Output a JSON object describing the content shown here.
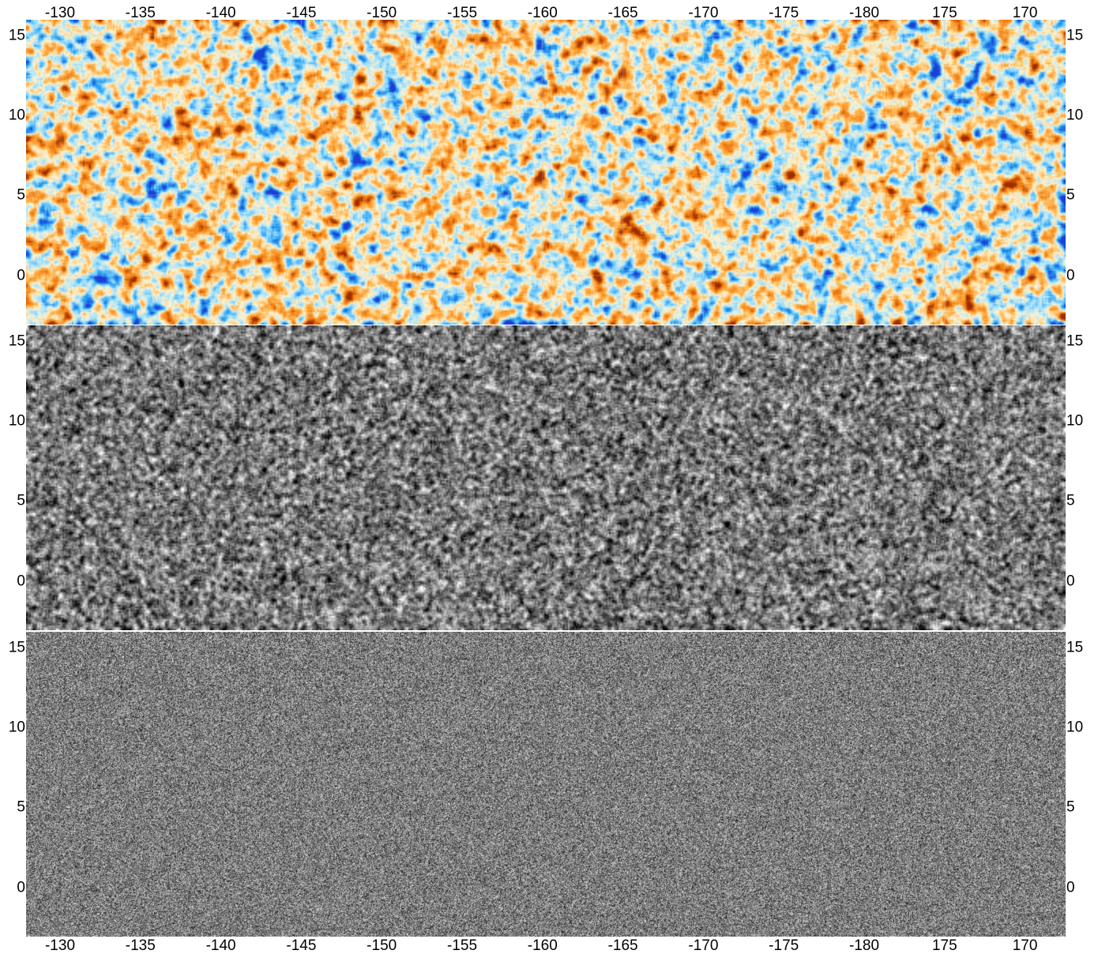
{
  "x_axis": {
    "ticks": [
      "-130",
      "-135",
      "-140",
      "-145",
      "-150",
      "-155",
      "-160",
      "-165",
      "-170",
      "-175",
      "-180",
      "175",
      "170"
    ]
  },
  "y_axis": {
    "ticks": [
      "15",
      "10",
      "5",
      "0"
    ]
  },
  "panels": [
    {
      "name": "temperature-map",
      "style": "diverging colormap (blue to orange)",
      "colors": [
        "#1a3fd6",
        "#2aa0f0",
        "#9fe0ff",
        "#fff4d0",
        "#ffb24a",
        "#f07a10",
        "#9b2c00"
      ]
    },
    {
      "name": "grayscale-map-1",
      "style": "grayscale noise",
      "colors": [
        "#000000",
        "#ffffff"
      ]
    },
    {
      "name": "grayscale-map-2",
      "style": "grayscale fine noise",
      "colors": [
        "#000000",
        "#ffffff"
      ]
    }
  ]
}
